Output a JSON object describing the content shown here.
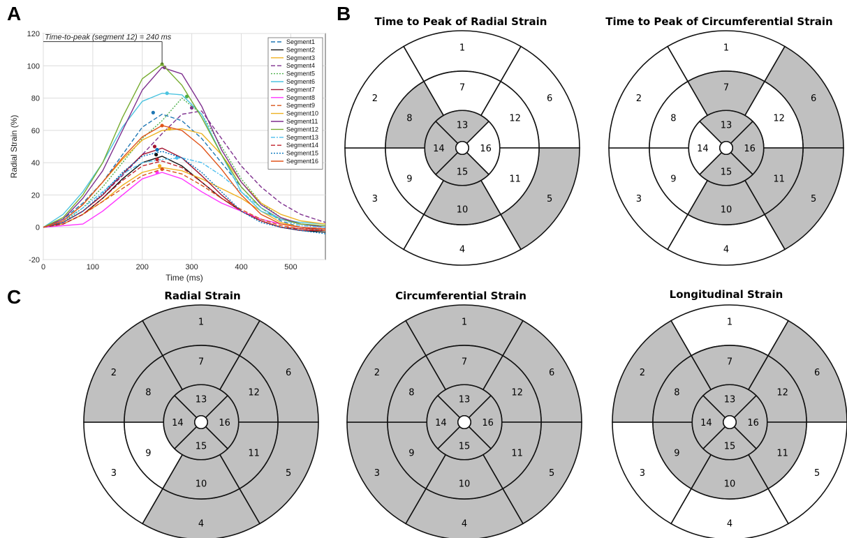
{
  "panels": {
    "A": "A",
    "B": "B",
    "C": "C"
  },
  "colors": {
    "shaded": "#c0c0c0",
    "unshaded": "#ffffff",
    "stroke": "#111111",
    "grid": "#dcdcdc"
  },
  "chart_data": {
    "type": "line",
    "xlabel": "Time (ms)",
    "ylabel": "Radial Strain (%)",
    "xlim": [
      0,
      570
    ],
    "ylim": [
      -20,
      120
    ],
    "xticks": [
      0,
      100,
      200,
      300,
      400,
      500
    ],
    "yticks": [
      -20,
      0,
      20,
      40,
      60,
      80,
      100,
      120
    ],
    "grid": true,
    "legend_position": "top-right",
    "annotation": "Time-to-peak (segment 12) = 240 ms",
    "annotation_time": 240,
    "x": [
      0,
      40,
      80,
      120,
      160,
      200,
      240,
      280,
      320,
      360,
      400,
      440,
      480,
      520,
      570
    ],
    "series": [
      {
        "name": "Segment1",
        "color": "#1f77b4",
        "dash": "6,3",
        "peak": [
          222,
          71
        ],
        "values": [
          0,
          5,
          15,
          28,
          45,
          62,
          70,
          66,
          55,
          40,
          25,
          12,
          4,
          0,
          -2
        ]
      },
      {
        "name": "Segment2",
        "color": "#111111",
        "dash": "",
        "peak": [
          228,
          45
        ],
        "values": [
          0,
          2,
          8,
          18,
          30,
          40,
          44,
          38,
          28,
          18,
          10,
          4,
          0,
          -2,
          -3
        ]
      },
      {
        "name": "Segment3",
        "color": "#f0b020",
        "dash": "",
        "peak": [
          235,
          38
        ],
        "values": [
          0,
          2,
          8,
          16,
          26,
          34,
          37,
          35,
          30,
          24,
          18,
          10,
          3,
          0,
          -1
        ]
      },
      {
        "name": "Segment4",
        "color": "#7e2f8e",
        "dash": "6,3",
        "peak": [
          300,
          74
        ],
        "values": [
          0,
          3,
          10,
          20,
          32,
          45,
          58,
          70,
          72,
          55,
          38,
          25,
          15,
          8,
          3
        ]
      },
      {
        "name": "Segment5",
        "color": "#4daf4a",
        "dash": "2,2",
        "peak": [
          290,
          81
        ],
        "values": [
          0,
          3,
          12,
          25,
          40,
          55,
          66,
          80,
          70,
          50,
          30,
          15,
          6,
          2,
          0
        ]
      },
      {
        "name": "Segment6",
        "color": "#4dc4e0",
        "dash": "",
        "peak": [
          250,
          83
        ],
        "values": [
          0,
          8,
          22,
          40,
          62,
          78,
          83,
          82,
          70,
          45,
          22,
          10,
          5,
          3,
          2
        ]
      },
      {
        "name": "Segment7",
        "color": "#a2142f",
        "dash": "",
        "peak": [
          225,
          50
        ],
        "values": [
          0,
          3,
          10,
          20,
          33,
          45,
          49,
          43,
          32,
          20,
          10,
          4,
          0,
          -2,
          -2
        ]
      },
      {
        "name": "Segment8",
        "color": "#ff33ff",
        "dash": "",
        "peak": [
          230,
          34
        ],
        "values": [
          0,
          1,
          2,
          10,
          20,
          30,
          34,
          30,
          22,
          15,
          10,
          5,
          2,
          0,
          -1
        ]
      },
      {
        "name": "Segment9",
        "color": "#d95319",
        "dash": "6,3",
        "peak": [
          240,
          36
        ],
        "values": [
          0,
          2,
          8,
          16,
          24,
          32,
          36,
          33,
          26,
          18,
          11,
          5,
          1,
          -1,
          -2
        ]
      },
      {
        "name": "Segment10",
        "color": "#edb120",
        "dash": "",
        "peak": [
          255,
          61
        ],
        "values": [
          0,
          4,
          14,
          28,
          42,
          54,
          60,
          61,
          58,
          45,
          28,
          15,
          8,
          4,
          2
        ]
      },
      {
        "name": "Segment11",
        "color": "#7e2f8e",
        "dash": "",
        "peak": [
          245,
          99
        ],
        "values": [
          0,
          5,
          18,
          35,
          60,
          85,
          99,
          95,
          75,
          48,
          28,
          14,
          6,
          2,
          0
        ]
      },
      {
        "name": "Segment12",
        "color": "#77ac30",
        "dash": "",
        "peak": [
          240,
          101
        ],
        "values": [
          0,
          6,
          20,
          40,
          68,
          92,
          101,
          88,
          68,
          45,
          25,
          12,
          5,
          2,
          1
        ]
      },
      {
        "name": "Segment13",
        "color": "#4dbeee",
        "dash": "6,2,2,2",
        "peak": [
          270,
          43
        ],
        "values": [
          0,
          4,
          12,
          22,
          33,
          40,
          42,
          43,
          40,
          32,
          22,
          12,
          5,
          1,
          0
        ]
      },
      {
        "name": "Segment14",
        "color": "#c0202a",
        "dash": "6,3",
        "peak": [
          230,
          42
        ],
        "values": [
          0,
          2,
          8,
          18,
          29,
          38,
          41,
          37,
          28,
          18,
          10,
          4,
          0,
          -1,
          -1
        ]
      },
      {
        "name": "Segment15",
        "color": "#0072bd",
        "dash": "2,2",
        "peak": [
          230,
          48
        ],
        "values": [
          0,
          3,
          10,
          21,
          34,
          44,
          47,
          43,
          34,
          22,
          10,
          3,
          0,
          -2,
          -4
        ]
      },
      {
        "name": "Segment16",
        "color": "#e0541a",
        "dash": "",
        "peak": [
          240,
          63
        ],
        "values": [
          0,
          4,
          14,
          28,
          43,
          56,
          63,
          60,
          50,
          36,
          20,
          8,
          2,
          0,
          -1
        ]
      }
    ]
  },
  "bullseyes": [
    {
      "title": "Time to Peak of Radial Strain",
      "shaded": [
        5,
        8,
        10,
        13,
        14,
        15
      ]
    },
    {
      "title": "Time to Peak of Circumferential Strain",
      "shaded": [
        5,
        6,
        7,
        10,
        11,
        13,
        15,
        16
      ]
    },
    {
      "title": "Radial Strain",
      "shaded": [
        1,
        2,
        4,
        5,
        6,
        7,
        8,
        10,
        11,
        12,
        13,
        14,
        15,
        16
      ]
    },
    {
      "title": "Circumferential Strain",
      "shaded": [
        1,
        2,
        3,
        4,
        5,
        6,
        7,
        8,
        9,
        10,
        11,
        12,
        13,
        14,
        15,
        16
      ]
    },
    {
      "title": "Longitudinal  Strain",
      "shaded": [
        2,
        6,
        7,
        8,
        9,
        10,
        11,
        12,
        13,
        14,
        15,
        16
      ]
    }
  ]
}
